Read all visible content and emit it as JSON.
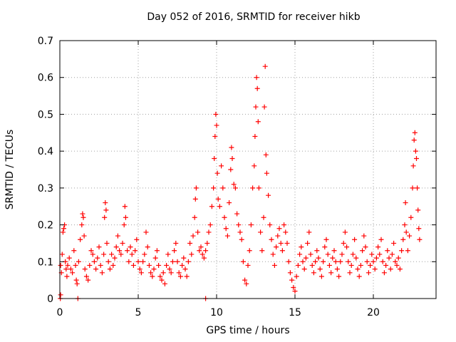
{
  "chart_data": {
    "type": "scatter",
    "title": "Day 052 of 2016, SRMTID for receiver hikb",
    "xlabel": "GPS time / hours",
    "ylabel": "SRMTID / TECUs",
    "xlim": [
      0,
      24
    ],
    "ylim": [
      0,
      0.7
    ],
    "x_ticks": [
      0,
      5,
      10,
      15,
      20
    ],
    "y_ticks": [
      0,
      0.1,
      0.2,
      0.3,
      0.4,
      0.5,
      0.6,
      0.7
    ],
    "grid": true,
    "marker": "+",
    "series": [
      {
        "name": "SRMTID",
        "color": "#ff0000",
        "points": [
          [
            0.05,
            0.09
          ],
          [
            0.1,
            0.07
          ],
          [
            0.15,
            0.12
          ],
          [
            0.2,
            0.18
          ],
          [
            0.25,
            0.19
          ],
          [
            0.3,
            0.2
          ],
          [
            0.35,
            0.1
          ],
          [
            0.4,
            0.08
          ],
          [
            0.45,
            0.06
          ],
          [
            0.5,
            0.09
          ],
          [
            0.6,
            0.11
          ],
          [
            0.7,
            0.08
          ],
          [
            0.8,
            0.07
          ],
          [
            0.9,
            0.13
          ],
          [
            1.0,
            0.09
          ],
          [
            1.05,
            0.05
          ],
          [
            1.1,
            0.04
          ],
          [
            1.2,
            0.1
          ],
          [
            1.3,
            0.16
          ],
          [
            1.4,
            0.2
          ],
          [
            1.45,
            0.23
          ],
          [
            1.5,
            0.22
          ],
          [
            1.55,
            0.17
          ],
          [
            1.6,
            0.08
          ],
          [
            1.7,
            0.06
          ],
          [
            1.8,
            0.05
          ],
          [
            1.9,
            0.09
          ],
          [
            2.0,
            0.13
          ],
          [
            2.1,
            0.12
          ],
          [
            2.2,
            0.1
          ],
          [
            2.3,
            0.08
          ],
          [
            2.4,
            0.11
          ],
          [
            2.5,
            0.14
          ],
          [
            2.6,
            0.09
          ],
          [
            2.7,
            0.07
          ],
          [
            2.8,
            0.12
          ],
          [
            2.85,
            0.22
          ],
          [
            2.9,
            0.26
          ],
          [
            2.95,
            0.24
          ],
          [
            3.0,
            0.15
          ],
          [
            3.1,
            0.1
          ],
          [
            3.2,
            0.08
          ],
          [
            3.3,
            0.12
          ],
          [
            3.4,
            0.09
          ],
          [
            3.5,
            0.11
          ],
          [
            3.6,
            0.14
          ],
          [
            3.7,
            0.17
          ],
          [
            3.8,
            0.13
          ],
          [
            3.9,
            0.12
          ],
          [
            4.0,
            0.15
          ],
          [
            4.1,
            0.2
          ],
          [
            4.15,
            0.25
          ],
          [
            4.2,
            0.22
          ],
          [
            4.3,
            0.13
          ],
          [
            4.4,
            0.1
          ],
          [
            4.5,
            0.14
          ],
          [
            4.6,
            0.12
          ],
          [
            4.7,
            0.09
          ],
          [
            4.8,
            0.13
          ],
          [
            4.9,
            0.16
          ],
          [
            5.0,
            0.1
          ],
          [
            5.1,
            0.08
          ],
          [
            5.2,
            0.07
          ],
          [
            5.3,
            0.1
          ],
          [
            5.4,
            0.12
          ],
          [
            5.5,
            0.18
          ],
          [
            5.6,
            0.14
          ],
          [
            5.7,
            0.09
          ],
          [
            5.8,
            0.07
          ],
          [
            5.9,
            0.06
          ],
          [
            6.0,
            0.08
          ],
          [
            6.1,
            0.11
          ],
          [
            6.2,
            0.13
          ],
          [
            6.3,
            0.09
          ],
          [
            6.4,
            0.06
          ],
          [
            6.5,
            0.05
          ],
          [
            6.6,
            0.07
          ],
          [
            6.7,
            0.04
          ],
          [
            6.8,
            0.09
          ],
          [
            6.9,
            0.12
          ],
          [
            7.0,
            0.08
          ],
          [
            7.1,
            0.07
          ],
          [
            7.2,
            0.1
          ],
          [
            7.3,
            0.13
          ],
          [
            7.4,
            0.15
          ],
          [
            7.5,
            0.1
          ],
          [
            7.6,
            0.07
          ],
          [
            7.7,
            0.06
          ],
          [
            7.8,
            0.09
          ],
          [
            7.9,
            0.11
          ],
          [
            8.0,
            0.08
          ],
          [
            8.1,
            0.06
          ],
          [
            8.2,
            0.1
          ],
          [
            8.3,
            0.15
          ],
          [
            8.4,
            0.12
          ],
          [
            8.5,
            0.17
          ],
          [
            8.6,
            0.22
          ],
          [
            8.65,
            0.27
          ],
          [
            8.7,
            0.3
          ],
          [
            8.8,
            0.18
          ],
          [
            8.9,
            0.13
          ],
          [
            9.0,
            0.14
          ],
          [
            9.1,
            0.12
          ],
          [
            9.2,
            0.11
          ],
          [
            9.3,
            0.13
          ],
          [
            9.4,
            0.15
          ],
          [
            9.5,
            0.18
          ],
          [
            9.6,
            0.2
          ],
          [
            9.7,
            0.25
          ],
          [
            9.8,
            0.3
          ],
          [
            9.85,
            0.38
          ],
          [
            9.9,
            0.44
          ],
          [
            9.95,
            0.5
          ],
          [
            10.0,
            0.47
          ],
          [
            10.05,
            0.34
          ],
          [
            10.1,
            0.27
          ],
          [
            10.2,
            0.25
          ],
          [
            10.3,
            0.36
          ],
          [
            10.4,
            0.3
          ],
          [
            10.5,
            0.22
          ],
          [
            10.6,
            0.19
          ],
          [
            10.7,
            0.17
          ],
          [
            10.8,
            0.26
          ],
          [
            10.9,
            0.35
          ],
          [
            10.95,
            0.41
          ],
          [
            11.0,
            0.38
          ],
          [
            11.1,
            0.31
          ],
          [
            11.2,
            0.3
          ],
          [
            11.3,
            0.23
          ],
          [
            11.4,
            0.2
          ],
          [
            11.5,
            0.18
          ],
          [
            11.6,
            0.16
          ],
          [
            11.7,
            0.1
          ],
          [
            11.8,
            0.05
          ],
          [
            11.9,
            0.04
          ],
          [
            12.0,
            0.09
          ],
          [
            12.1,
            0.13
          ],
          [
            12.2,
            0.2
          ],
          [
            12.3,
            0.3
          ],
          [
            12.4,
            0.36
          ],
          [
            12.45,
            0.44
          ],
          [
            12.5,
            0.52
          ],
          [
            12.55,
            0.6
          ],
          [
            12.6,
            0.57
          ],
          [
            12.65,
            0.48
          ],
          [
            12.7,
            0.3
          ],
          [
            12.8,
            0.18
          ],
          [
            12.9,
            0.13
          ],
          [
            13.0,
            0.22
          ],
          [
            13.05,
            0.52
          ],
          [
            13.1,
            0.63
          ],
          [
            13.15,
            0.39
          ],
          [
            13.2,
            0.34
          ],
          [
            13.3,
            0.28
          ],
          [
            13.4,
            0.2
          ],
          [
            13.5,
            0.16
          ],
          [
            13.6,
            0.12
          ],
          [
            13.7,
            0.09
          ],
          [
            13.8,
            0.14
          ],
          [
            13.9,
            0.17
          ],
          [
            14.0,
            0.19
          ],
          [
            14.1,
            0.15
          ],
          [
            14.2,
            0.13
          ],
          [
            14.3,
            0.2
          ],
          [
            14.4,
            0.18
          ],
          [
            14.5,
            0.15
          ],
          [
            14.6,
            0.1
          ],
          [
            14.7,
            0.07
          ],
          [
            14.8,
            0.05
          ],
          [
            14.9,
            0.03
          ],
          [
            15.0,
            0.02
          ],
          [
            15.1,
            0.06
          ],
          [
            15.2,
            0.09
          ],
          [
            15.3,
            0.12
          ],
          [
            15.4,
            0.14
          ],
          [
            15.5,
            0.1
          ],
          [
            15.6,
            0.08
          ],
          [
            15.7,
            0.11
          ],
          [
            15.8,
            0.15
          ],
          [
            15.9,
            0.18
          ],
          [
            16.0,
            0.12
          ],
          [
            16.1,
            0.09
          ],
          [
            16.2,
            0.07
          ],
          [
            16.3,
            0.1
          ],
          [
            16.4,
            0.13
          ],
          [
            16.5,
            0.11
          ],
          [
            16.6,
            0.08
          ],
          [
            16.7,
            0.06
          ],
          [
            16.8,
            0.1
          ],
          [
            16.9,
            0.14
          ],
          [
            17.0,
            0.16
          ],
          [
            17.1,
            0.12
          ],
          [
            17.2,
            0.09
          ],
          [
            17.3,
            0.07
          ],
          [
            17.4,
            0.11
          ],
          [
            17.5,
            0.13
          ],
          [
            17.6,
            0.1
          ],
          [
            17.7,
            0.08
          ],
          [
            17.8,
            0.06
          ],
          [
            17.9,
            0.1
          ],
          [
            18.0,
            0.12
          ],
          [
            18.1,
            0.15
          ],
          [
            18.2,
            0.18
          ],
          [
            18.3,
            0.14
          ],
          [
            18.4,
            0.1
          ],
          [
            18.5,
            0.07
          ],
          [
            18.6,
            0.09
          ],
          [
            18.7,
            0.12
          ],
          [
            18.8,
            0.16
          ],
          [
            18.9,
            0.11
          ],
          [
            19.0,
            0.08
          ],
          [
            19.1,
            0.06
          ],
          [
            19.2,
            0.09
          ],
          [
            19.3,
            0.13
          ],
          [
            19.4,
            0.17
          ],
          [
            19.5,
            0.14
          ],
          [
            19.6,
            0.1
          ],
          [
            19.7,
            0.07
          ],
          [
            19.8,
            0.09
          ],
          [
            19.9,
            0.12
          ],
          [
            20.0,
            0.1
          ],
          [
            20.1,
            0.08
          ],
          [
            20.2,
            0.11
          ],
          [
            20.3,
            0.14
          ],
          [
            20.4,
            0.12
          ],
          [
            20.5,
            0.16
          ],
          [
            20.6,
            0.1
          ],
          [
            20.7,
            0.07
          ],
          [
            20.8,
            0.09
          ],
          [
            20.9,
            0.13
          ],
          [
            21.0,
            0.11
          ],
          [
            21.1,
            0.08
          ],
          [
            21.2,
            0.12
          ],
          [
            21.3,
            0.15
          ],
          [
            21.4,
            0.1
          ],
          [
            21.5,
            0.09
          ],
          [
            21.6,
            0.11
          ],
          [
            21.7,
            0.08
          ],
          [
            21.8,
            0.13
          ],
          [
            21.9,
            0.16
          ],
          [
            22.0,
            0.2
          ],
          [
            22.05,
            0.26
          ],
          [
            22.1,
            0.18
          ],
          [
            22.2,
            0.13
          ],
          [
            22.3,
            0.17
          ],
          [
            22.4,
            0.22
          ],
          [
            22.5,
            0.3
          ],
          [
            22.55,
            0.36
          ],
          [
            22.6,
            0.43
          ],
          [
            22.65,
            0.45
          ],
          [
            22.7,
            0.4
          ],
          [
            22.75,
            0.38
          ],
          [
            22.8,
            0.3
          ],
          [
            22.85,
            0.24
          ],
          [
            22.9,
            0.19
          ],
          [
            22.95,
            0.16
          ],
          [
            0.03,
            0.0
          ],
          [
            1.15,
            0.0
          ],
          [
            9.3,
            0.0
          ],
          [
            0.05,
            0.01
          ]
        ]
      }
    ]
  }
}
